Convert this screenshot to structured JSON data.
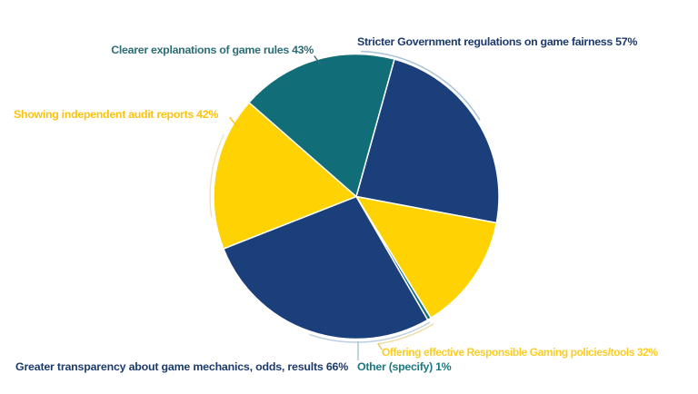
{
  "chart_data": {
    "type": "pie",
    "title": "",
    "unit": "%",
    "note": "multi-select survey; slice angles proportional to value/241",
    "values_total": 241,
    "start_angle_deg": 15.5,
    "direction": "clockwise",
    "background": "#ffffff",
    "legend_position": "callout-labels-around-pie",
    "slices": [
      {
        "id": "stricter-government-regulations",
        "label": "Stricter Government regulations on game fairness",
        "value": 57,
        "display": "Stricter Government regulations on game fairness 57%",
        "color": "#1a3f7a",
        "text_color": "#1c3a6b"
      },
      {
        "id": "offering-responsible-gaming-tools",
        "label": "Offering effective Responsible Gaming policies/tools",
        "value": 32,
        "display": "Offering effective Responsible Gaming policies/tools 32%",
        "color": "#ffd303",
        "text_color": "#fbcd24"
      },
      {
        "id": "other-specify",
        "label": "Other (specify)",
        "value": 1,
        "display": "Other (specify) 1%",
        "color": "#116d77",
        "text_color": "#1e7a80"
      },
      {
        "id": "greater-transparency-mechanics",
        "label": "Greater transparency about game mechanics, odds, results",
        "value": 66,
        "display": "Greater transparency about game mechanics, odds, results 66%",
        "color": "#1a3f7a",
        "text_color": "#1c3a6b"
      },
      {
        "id": "showing-independent-audit-reports",
        "label": "Showing independent audit reports",
        "value": 42,
        "display": "Showing independent audit reports 42%",
        "color": "#ffd303",
        "text_color": "#fcc30d"
      },
      {
        "id": "clearer-explanations-game-rules",
        "label": "Clearer explanations of game rules",
        "value": 43,
        "display": "Clearer explanations of game rules 43%",
        "color": "#116d77",
        "text_color": "#2d6e76"
      }
    ],
    "slice_separator_color": "#ffffff",
    "leader_colors": {
      "blue_gray": "#aec6da",
      "bottom_arc": "#bccfdf",
      "pale_yellow": "#eedda8",
      "yellow_elbow": "#e9c767",
      "cream": "#ece3c8",
      "teal": "#2d6e76",
      "tick_yellow": "#fcc30d",
      "drop": "#a9c4cf"
    }
  }
}
